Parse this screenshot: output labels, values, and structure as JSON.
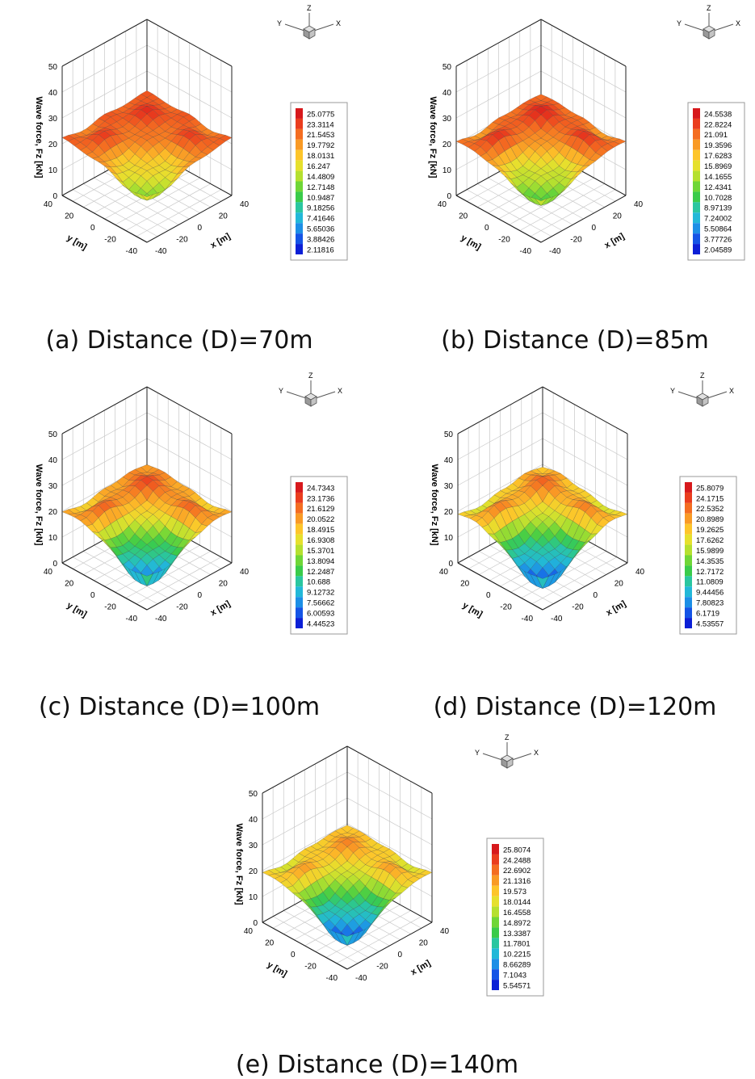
{
  "chart_data": [
    {
      "type": "surface",
      "caption": "(a) Distance (D)=70m",
      "zlabel": "Wave force, Fz [kN]",
      "xlabel": "x [m]",
      "ylabel": "y [m]",
      "z_ticks": [
        "0",
        "10",
        "20",
        "30",
        "40",
        "50"
      ],
      "x_ticks": [
        "-40",
        "-20",
        "0",
        "20",
        "40"
      ],
      "y_ticks": [
        "40",
        "20",
        "0",
        "-20",
        "-40"
      ],
      "xlim": [
        -40,
        40
      ],
      "ylim": [
        -40,
        40
      ],
      "zlim": [
        0,
        50
      ],
      "orient": {
        "x": "X",
        "y": "Y",
        "z": "Z"
      },
      "legend_levels": [
        "25.0775",
        "23.3114",
        "21.5453",
        "19.7792",
        "18.0131",
        "16.247",
        "14.4809",
        "12.7148",
        "10.9487",
        "9.18256",
        "7.41646",
        "5.65036",
        "3.88426",
        "2.11816"
      ],
      "peak_force": 25.0775,
      "min_force": 2.11816,
      "shape": {
        "edge": 23,
        "corner": 22,
        "center": 13,
        "mid": 21
      }
    },
    {
      "type": "surface",
      "caption": "(b) Distance (D)=85m",
      "zlabel": "Wave force, Fz [kN]",
      "xlabel": "x [m]",
      "ylabel": "y [m]",
      "z_ticks": [
        "0",
        "10",
        "20",
        "30",
        "40",
        "50"
      ],
      "x_ticks": [
        "-40",
        "-20",
        "0",
        "20",
        "40"
      ],
      "y_ticks": [
        "40",
        "20",
        "0",
        "-20",
        "-40"
      ],
      "xlim": [
        -40,
        40
      ],
      "ylim": [
        -40,
        40
      ],
      "zlim": [
        0,
        50
      ],
      "orient": {
        "x": "X",
        "y": "Y",
        "z": "Z"
      },
      "legend_levels": [
        "24.5538",
        "22.8224",
        "21.091",
        "19.3596",
        "17.6283",
        "15.8969",
        "14.1655",
        "12.4341",
        "10.7028",
        "8.97139",
        "7.24002",
        "5.50864",
        "3.77726",
        "2.04589"
      ],
      "peak_force": 24.5538,
      "min_force": 2.04589,
      "shape": {
        "edge": 23,
        "corner": 21,
        "center": 11,
        "mid": 19
      }
    },
    {
      "type": "surface",
      "caption": "(c) Distance (D)=100m",
      "zlabel": "Wave force, Fz [kN]",
      "xlabel": "x [m]",
      "ylabel": "y [m]",
      "z_ticks": [
        "0",
        "10",
        "20",
        "30",
        "40",
        "50"
      ],
      "x_ticks": [
        "-40",
        "-20",
        "0",
        "20",
        "40"
      ],
      "y_ticks": [
        "40",
        "20",
        "0",
        "-20",
        "-40"
      ],
      "xlim": [
        -40,
        40
      ],
      "ylim": [
        -40,
        40
      ],
      "zlim": [
        0,
        50
      ],
      "orient": {
        "x": "X",
        "y": "Y",
        "z": "Z"
      },
      "legend_levels": [
        "24.7343",
        "23.1736",
        "21.6129",
        "20.0522",
        "18.4915",
        "16.9308",
        "15.3701",
        "13.8094",
        "12.2487",
        "10.688",
        "9.12732",
        "7.56662",
        "6.00593",
        "4.44523"
      ],
      "peak_force": 24.7343,
      "min_force": 4.44523,
      "shape": {
        "edge": 22,
        "corner": 21,
        "center": 6,
        "mid": 17
      }
    },
    {
      "type": "surface",
      "caption": "(d) Distance (D)=120m",
      "zlabel": "Wave force, Fz [kN]",
      "xlabel": "x [m]",
      "ylabel": "y [m]",
      "z_ticks": [
        "0",
        "10",
        "20",
        "30",
        "40",
        "50"
      ],
      "x_ticks": [
        "-40",
        "-20",
        "0",
        "20",
        "40"
      ],
      "y_ticks": [
        "40",
        "20",
        "0",
        "-20",
        "-40"
      ],
      "xlim": [
        -40,
        40
      ],
      "ylim": [
        -40,
        40
      ],
      "zlim": [
        0,
        50
      ],
      "orient": {
        "x": "X",
        "y": "Y",
        "z": "Z"
      },
      "legend_levels": [
        "25.8079",
        "24.1715",
        "22.5352",
        "20.8989",
        "19.2625",
        "17.6262",
        "15.9899",
        "14.3535",
        "12.7172",
        "11.0809",
        "9.44456",
        "7.80823",
        "6.1719",
        "4.53557"
      ],
      "peak_force": 25.8079,
      "min_force": 4.53557,
      "shape": {
        "edge": 22,
        "corner": 20,
        "center": 5,
        "mid": 16
      }
    },
    {
      "type": "surface",
      "caption": "(e) Distance (D)=140m",
      "zlabel": "Wave force, Fz [kN]",
      "xlabel": "x [m]",
      "ylabel": "y [m]",
      "z_ticks": [
        "0",
        "10",
        "20",
        "30",
        "40",
        "50"
      ],
      "x_ticks": [
        "-40",
        "-20",
        "0",
        "20",
        "40"
      ],
      "y_ticks": [
        "40",
        "20",
        "0",
        "-20",
        "-40"
      ],
      "xlim": [
        -40,
        40
      ],
      "ylim": [
        -40,
        40
      ],
      "zlim": [
        0,
        50
      ],
      "orient": {
        "x": "X",
        "y": "Y",
        "z": "Z"
      },
      "legend_levels": [
        "25.8074",
        "24.2488",
        "22.6902",
        "21.1316",
        "19.573",
        "18.0144",
        "16.4558",
        "14.8972",
        "13.3387",
        "11.7801",
        "10.2215",
        "8.66289",
        "7.1043",
        "5.54571"
      ],
      "peak_force": 25.8074,
      "min_force": 5.54571,
      "shape": {
        "edge": 21,
        "corner": 20,
        "center": 6,
        "mid": 17
      }
    }
  ],
  "palette": [
    "#d7191c",
    "#ea3d1e",
    "#f46d21",
    "#f99a25",
    "#fdc52a",
    "#e6e02d",
    "#b5e02f",
    "#6fd637",
    "#3acb4a",
    "#2ac6a0",
    "#22b8d8",
    "#1c8fe6",
    "#1454e6",
    "#0b1fd6"
  ]
}
